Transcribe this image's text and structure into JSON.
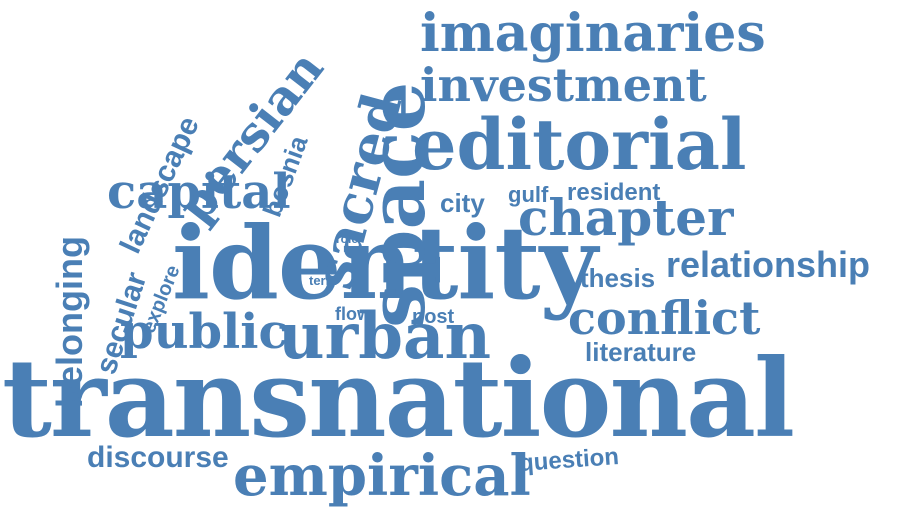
{
  "colors": {
    "word": "#4a7fb5",
    "background": "#ffffff"
  },
  "words": [
    "transnational",
    "identity",
    "space",
    "editorial",
    "urban",
    "imaginaries",
    "investment",
    "sacred",
    "chapter",
    "empirical",
    "capital",
    "persian",
    "public",
    "conflict",
    "relationship",
    "belonging",
    "landscape",
    "bosnia",
    "secular",
    "discourse",
    "literature",
    "question",
    "thesis",
    "city",
    "gulf",
    "resident",
    "explore",
    "post",
    "flow",
    "term",
    "role"
  ]
}
